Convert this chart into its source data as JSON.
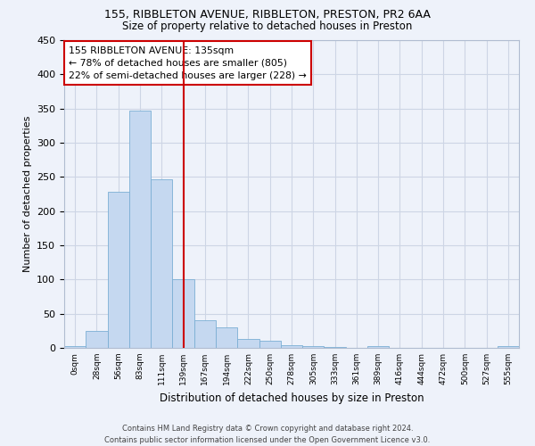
{
  "title1": "155, RIBBLETON AVENUE, RIBBLETON, PRESTON, PR2 6AA",
  "title2": "Size of property relative to detached houses in Preston",
  "xlabel": "Distribution of detached houses by size in Preston",
  "ylabel": "Number of detached properties",
  "bar_color": "#c5d8f0",
  "bar_edge_color": "#7bafd4",
  "bin_labels": [
    "0sqm",
    "28sqm",
    "56sqm",
    "83sqm",
    "111sqm",
    "139sqm",
    "167sqm",
    "194sqm",
    "222sqm",
    "250sqm",
    "278sqm",
    "305sqm",
    "333sqm",
    "361sqm",
    "389sqm",
    "416sqm",
    "444sqm",
    "472sqm",
    "500sqm",
    "527sqm",
    "555sqm"
  ],
  "bar_heights": [
    3,
    25,
    228,
    347,
    247,
    101,
    40,
    30,
    13,
    10,
    4,
    3,
    1,
    0,
    3,
    0,
    0,
    0,
    0,
    0,
    3
  ],
  "vline_bin_index": 5,
  "annotation_line1": "155 RIBBLETON AVENUE: 135sqm",
  "annotation_line2": "← 78% of detached houses are smaller (805)",
  "annotation_line3": "22% of semi-detached houses are larger (228) →",
  "vline_color": "#cc0000",
  "annotation_box_edge_color": "#cc0000",
  "ylim": [
    0,
    450
  ],
  "yticks": [
    0,
    50,
    100,
    150,
    200,
    250,
    300,
    350,
    400,
    450
  ],
  "grid_color": "#cdd5e5",
  "background_color": "#eef2fa",
  "footnote": "Contains HM Land Registry data © Crown copyright and database right 2024.\nContains public sector information licensed under the Open Government Licence v3.0."
}
